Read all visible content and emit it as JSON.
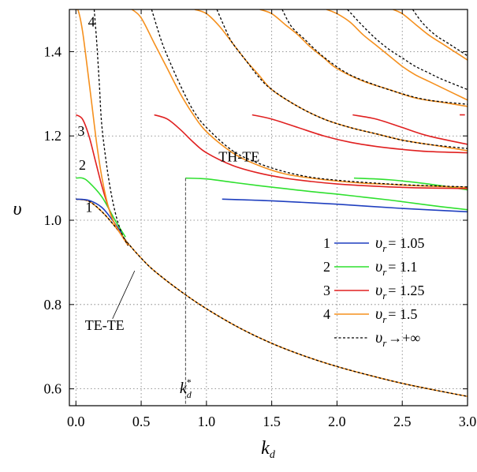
{
  "chart_data": {
    "type": "line",
    "xlabel": "k",
    "xlabel_sub": "d",
    "ylabel": "υ",
    "xlim": [
      -0.05,
      3.0
    ],
    "ylim": [
      0.56,
      1.5
    ],
    "x_ticks": [
      0.0,
      0.5,
      1.0,
      1.5,
      2.0,
      2.5,
      3.0
    ],
    "x_tick_labels": [
      "0.0",
      "0.5",
      "1.0",
      "1.5",
      "2.0",
      "2.5",
      "3.0"
    ],
    "y_ticks": [
      0.6,
      0.8,
      1.0,
      1.2,
      1.4
    ],
    "y_tick_labels": [
      "0.6",
      "0.8",
      "1.0",
      "1.2",
      "1.4"
    ],
    "grid": true,
    "legend_position": "bottom-right",
    "legend": [
      {
        "number": "1",
        "name": "υ",
        "sub": "r",
        "relation": "= 1.05",
        "color": "#1f3fbf",
        "dashed": false
      },
      {
        "number": "2",
        "name": "υ",
        "sub": "r",
        "relation": "= 1.1",
        "color": "#2fe02f",
        "dashed": false
      },
      {
        "number": "3",
        "name": "υ",
        "sub": "r",
        "relation": "= 1.25",
        "color": "#e02020",
        "dashed": false
      },
      {
        "number": "4",
        "name": "υ",
        "sub": "r",
        "relation": "= 1.5",
        "color": "#f5901e",
        "dashed": false
      },
      {
        "number": "",
        "name": "υ",
        "sub": "r",
        "relation": "→+∞",
        "color": "#000000",
        "dashed": true
      }
    ],
    "annotations": [
      {
        "text": "TH-TE",
        "x": 1.25,
        "y": 1.14
      },
      {
        "text": "TE-TE",
        "x": 0.22,
        "y": 0.74
      },
      {
        "text": "k",
        "sub": "d",
        "sup": "*",
        "x": 0.84,
        "y": 0.59
      },
      {
        "text": "1",
        "x": 0.1,
        "y": 1.02
      },
      {
        "text": "2",
        "x": 0.05,
        "y": 1.12
      },
      {
        "text": "3",
        "x": 0.04,
        "y": 1.2
      },
      {
        "text": "4",
        "x": 0.12,
        "y": 1.46
      }
    ],
    "kd_star": 0.84,
    "te_te_curve": {
      "x": [
        0.0,
        0.1,
        0.2,
        0.3,
        0.4,
        0.5,
        0.6,
        0.8,
        1.0,
        1.25,
        1.5,
        1.75,
        2.0,
        2.25,
        2.5,
        2.75,
        3.0
      ],
      "y": [
        1.05,
        1.045,
        1.02,
        0.985,
        0.945,
        0.91,
        0.88,
        0.832,
        0.79,
        0.745,
        0.708,
        0.678,
        0.653,
        0.632,
        0.613,
        0.597,
        0.582
      ]
    },
    "series": [
      {
        "name": "υr = 1.05",
        "color": "#1f3fbf",
        "segments": [
          {
            "x": [
              0.0,
              0.1,
              0.2,
              0.28,
              0.35
            ],
            "y": [
              1.05,
              1.047,
              1.03,
              1.0,
              0.97
            ]
          },
          {
            "x": [
              1.12,
              1.5,
              2.0,
              2.5,
              3.0
            ],
            "y": [
              1.05,
              1.046,
              1.038,
              1.028,
              1.02
            ]
          }
        ]
      },
      {
        "name": "υr = 1.1",
        "color": "#2fe02f",
        "segments": [
          {
            "x": [
              0.0,
              0.05,
              0.1,
              0.2,
              0.3,
              0.38
            ],
            "y": [
              1.1,
              1.1,
              1.09,
              1.055,
              1.0,
              0.96
            ]
          },
          {
            "x": [
              0.84,
              1.0,
              1.2,
              1.4,
              1.6,
              1.8,
              2.0,
              2.2,
              2.4,
              2.6,
              2.8,
              3.0
            ],
            "y": [
              1.1,
              1.098,
              1.09,
              1.082,
              1.075,
              1.068,
              1.062,
              1.055,
              1.048,
              1.04,
              1.032,
              1.025
            ]
          },
          {
            "x": [
              2.13,
              2.4,
              2.7,
              3.0
            ],
            "y": [
              1.1,
              1.096,
              1.086,
              1.072
            ]
          }
        ]
      },
      {
        "name": "υr = 1.25",
        "color": "#e02020",
        "segments": [
          {
            "x": [
              0.0,
              0.05,
              0.1,
              0.15,
              0.2,
              0.25,
              0.3,
              0.4
            ],
            "y": [
              1.25,
              1.24,
              1.2,
              1.14,
              1.08,
              1.03,
              0.99,
              0.94
            ]
          },
          {
            "x": [
              0.6,
              0.7,
              0.8,
              0.9,
              1.0,
              1.2,
              1.4,
              1.6,
              1.8,
              2.0,
              2.2,
              2.4,
              2.6,
              2.8,
              3.0
            ],
            "y": [
              1.25,
              1.24,
              1.215,
              1.185,
              1.16,
              1.13,
              1.112,
              1.1,
              1.092,
              1.086,
              1.082,
              1.079,
              1.077,
              1.076,
              1.075
            ]
          },
          {
            "x": [
              1.35,
              1.5,
              1.7,
              1.9,
              2.1,
              2.3,
              2.5,
              2.7,
              3.0
            ],
            "y": [
              1.25,
              1.24,
              1.22,
              1.2,
              1.185,
              1.175,
              1.168,
              1.163,
              1.16
            ]
          },
          {
            "x": [
              2.12,
              2.3,
              2.5,
              2.7,
              3.0
            ],
            "y": [
              1.25,
              1.24,
              1.22,
              1.2,
              1.18
            ]
          },
          {
            "x": [
              2.94,
              2.98
            ],
            "y": [
              1.25,
              1.25
            ]
          }
        ]
      },
      {
        "name": "υr = 1.5",
        "color": "#f5901e",
        "segments": [
          {
            "x": [
              0.0,
              0.02,
              0.05,
              0.08,
              0.12,
              0.16,
              0.2,
              0.25,
              0.3,
              0.4
            ],
            "y": [
              1.5,
              1.495,
              1.45,
              1.38,
              1.28,
              1.18,
              1.1,
              1.03,
              0.99,
              0.94
            ]
          },
          {
            "x": [
              0.43,
              0.5,
              0.6,
              0.7,
              0.8,
              0.9,
              1.0,
              1.2,
              1.4,
              1.6,
              1.8,
              2.0,
              2.2,
              2.4,
              2.6,
              2.8,
              3.0
            ],
            "y": [
              1.5,
              1.48,
              1.42,
              1.36,
              1.3,
              1.25,
              1.21,
              1.16,
              1.13,
              1.11,
              1.1,
              1.093,
              1.088,
              1.085,
              1.082,
              1.08,
              1.078
            ]
          },
          {
            "x": [
              0.91,
              1.0,
              1.1,
              1.2,
              1.3,
              1.4,
              1.5,
              1.7,
              1.9,
              2.1,
              2.3,
              2.5,
              2.7,
              3.0
            ],
            "y": [
              1.5,
              1.49,
              1.46,
              1.42,
              1.38,
              1.345,
              1.31,
              1.27,
              1.24,
              1.22,
              1.205,
              1.19,
              1.18,
              1.165
            ]
          },
          {
            "x": [
              1.41,
              1.5,
              1.6,
              1.7,
              1.8,
              1.9,
              2.0,
              2.2,
              2.4,
              2.6,
              2.8,
              3.0
            ],
            "y": [
              1.5,
              1.49,
              1.465,
              1.44,
              1.41,
              1.385,
              1.36,
              1.33,
              1.31,
              1.29,
              1.28,
              1.27
            ]
          },
          {
            "x": [
              1.92,
              2.0,
              2.1,
              2.2,
              2.3,
              2.4,
              2.5,
              2.6,
              2.7,
              2.8,
              2.9,
              3.0
            ],
            "y": [
              1.5,
              1.49,
              1.47,
              1.44,
              1.415,
              1.39,
              1.365,
              1.345,
              1.33,
              1.315,
              1.3,
              1.285
            ]
          },
          {
            "x": [
              2.43,
              2.5,
              2.6,
              2.7,
              2.8,
              2.9,
              3.0
            ],
            "y": [
              1.5,
              1.49,
              1.465,
              1.44,
              1.42,
              1.4,
              1.38
            ]
          }
        ]
      },
      {
        "name": "υr → +∞",
        "color": "#000000",
        "dashed": true,
        "segments": [
          {
            "x": [
              0.14,
              0.16,
              0.18,
              0.2,
              0.25,
              0.3,
              0.35,
              0.4
            ],
            "y": [
              1.5,
              1.42,
              1.32,
              1.22,
              1.1,
              1.02,
              0.97,
              0.94
            ]
          },
          {
            "x": [
              0.58,
              0.65,
              0.7,
              0.8,
              0.9,
              1.0,
              1.2,
              1.4,
              1.6,
              1.8,
              2.0,
              2.2,
              2.4,
              2.6,
              2.8,
              3.0
            ],
            "y": [
              1.5,
              1.43,
              1.39,
              1.32,
              1.26,
              1.22,
              1.165,
              1.135,
              1.115,
              1.102,
              1.095,
              1.09,
              1.086,
              1.083,
              1.081,
              1.079
            ]
          },
          {
            "x": [
              1.08,
              1.15,
              1.2,
              1.3,
              1.4,
              1.5,
              1.7,
              1.9,
              2.1,
              2.3,
              2.5,
              2.7,
              3.0
            ],
            "y": [
              1.5,
              1.45,
              1.42,
              1.38,
              1.34,
              1.31,
              1.27,
              1.24,
              1.22,
              1.205,
              1.19,
              1.18,
              1.17
            ]
          },
          {
            "x": [
              1.58,
              1.65,
              1.75,
              1.85,
              1.95,
              2.1,
              2.3,
              2.5,
              2.7,
              3.0
            ],
            "y": [
              1.5,
              1.46,
              1.43,
              1.4,
              1.375,
              1.345,
              1.32,
              1.3,
              1.285,
              1.275
            ]
          },
          {
            "x": [
              2.08,
              2.2,
              2.3,
              2.4,
              2.5,
              2.6,
              2.7,
              2.8,
              3.0
            ],
            "y": [
              1.5,
              1.46,
              1.43,
              1.405,
              1.385,
              1.365,
              1.35,
              1.335,
              1.31
            ]
          },
          {
            "x": [
              2.58,
              2.65,
              2.75,
              2.85,
              3.0
            ],
            "y": [
              1.5,
              1.47,
              1.44,
              1.42,
              1.39
            ]
          }
        ]
      }
    ]
  }
}
